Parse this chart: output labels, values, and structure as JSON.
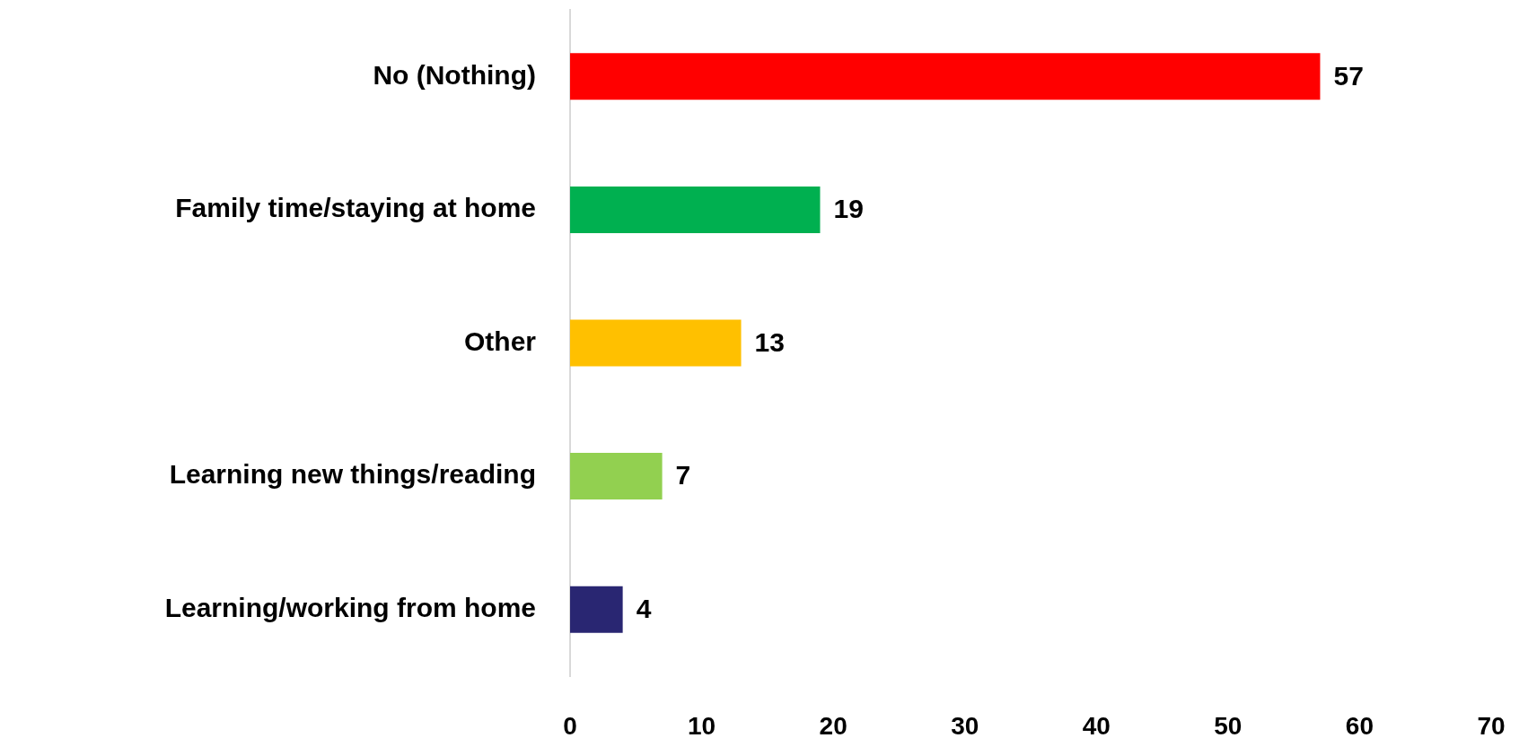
{
  "chart_data": {
    "type": "bar",
    "orientation": "horizontal",
    "categories": [
      "No (Nothing)",
      "Family time/staying at home",
      "Other",
      "Learning new things/reading",
      "Learning/working from home"
    ],
    "values": [
      57,
      19,
      13,
      7,
      4
    ],
    "colors": [
      "#ff0000",
      "#00b050",
      "#ffc000",
      "#92d050",
      "#292672"
    ],
    "xlim": [
      0,
      70
    ],
    "xticks": [
      0,
      10,
      20,
      30,
      40,
      50,
      60,
      70
    ],
    "data_labels": true
  }
}
